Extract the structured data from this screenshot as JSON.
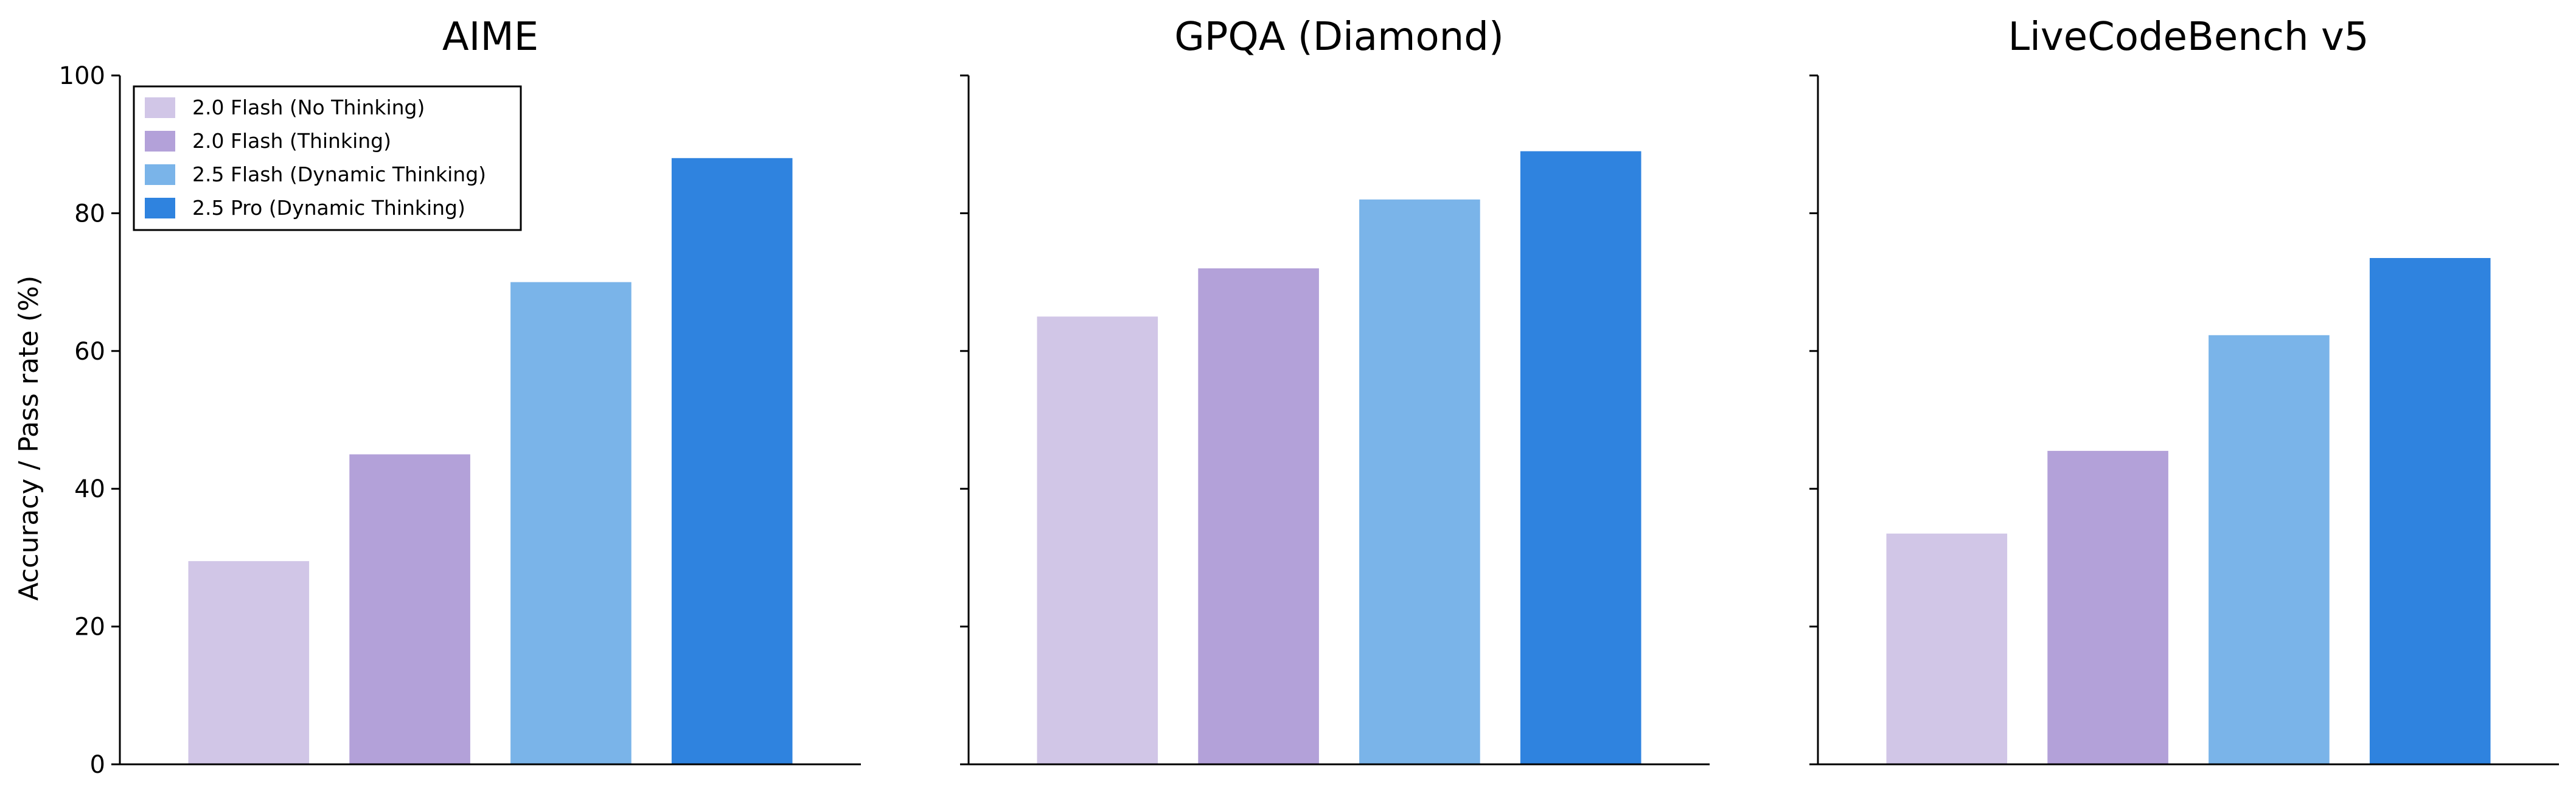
{
  "chart_data": {
    "type": "bar",
    "ylabel": "Accuracy / Pass rate (%)",
    "ylim": [
      0,
      100
    ],
    "yticks": [
      0,
      20,
      40,
      60,
      80,
      100
    ],
    "grid": false,
    "legend_position": "top-left",
    "series": [
      {
        "name": "2.0 Flash (No Thinking)",
        "color": "#d1c6e7"
      },
      {
        "name": "2.0 Flash (Thinking)",
        "color": "#b3a1d9"
      },
      {
        "name": "2.5 Flash (Dynamic Thinking)",
        "color": "#7ab4e9"
      },
      {
        "name": "2.5 Pro (Dynamic Thinking)",
        "color": "#2f83df"
      }
    ],
    "panels": [
      {
        "title": "AIME",
        "values": [
          29.5,
          45.0,
          70.0,
          88.0
        ]
      },
      {
        "title": "GPQA (Diamond)",
        "values": [
          65.0,
          72.0,
          82.0,
          89.0
        ]
      },
      {
        "title": "LiveCodeBench v5",
        "values": [
          33.5,
          45.5,
          62.3,
          73.5
        ]
      }
    ]
  }
}
